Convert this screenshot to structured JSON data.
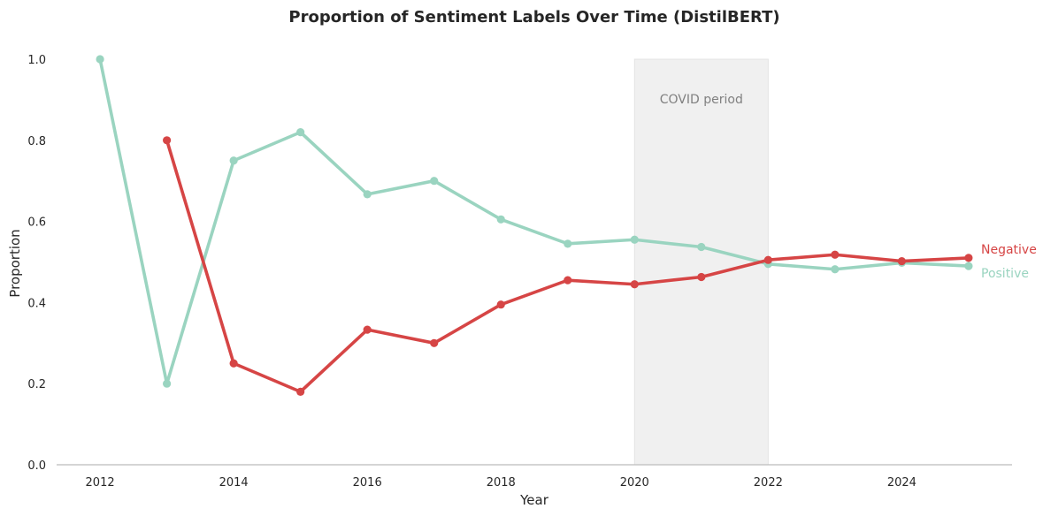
{
  "chart_data": {
    "type": "line",
    "title": "Proportion of Sentiment Labels Over Time (DistilBERT)",
    "xlabel": "Year",
    "ylabel": "Proportion",
    "xlim": [
      2011.35,
      2025.65
    ],
    "ylim": [
      0.0,
      1.0
    ],
    "x_ticks": [
      2012,
      2014,
      2016,
      2018,
      2020,
      2022,
      2024
    ],
    "y_ticks": [
      0.0,
      0.2,
      0.4,
      0.6,
      0.8,
      1.0
    ],
    "y_tick_labels": [
      "0.0",
      "0.2",
      "0.4",
      "0.6",
      "0.8",
      "1.0"
    ],
    "grid": false,
    "legend": "end-of-line labels",
    "series": [
      {
        "name": "Negative",
        "color": "#d64545",
        "x": [
          2013,
          2014,
          2015,
          2016,
          2017,
          2018,
          2019,
          2020,
          2021,
          2022,
          2023,
          2024,
          2025
        ],
        "values": [
          0.8,
          0.25,
          0.18,
          0.333,
          0.3,
          0.395,
          0.455,
          0.445,
          0.463,
          0.505,
          0.518,
          0.502,
          0.51
        ]
      },
      {
        "name": "Positive",
        "color": "#9ad4c0",
        "x": [
          2012,
          2013,
          2014,
          2015,
          2016,
          2017,
          2018,
          2019,
          2020,
          2021,
          2022,
          2023,
          2024,
          2025
        ],
        "values": [
          1.0,
          0.2,
          0.75,
          0.82,
          0.667,
          0.7,
          0.605,
          0.545,
          0.555,
          0.537,
          0.495,
          0.482,
          0.498,
          0.49
        ]
      }
    ],
    "shaded_region": {
      "label": "COVID period",
      "x_start": 2020,
      "x_end": 2022,
      "color": "#f0f0f0"
    }
  }
}
